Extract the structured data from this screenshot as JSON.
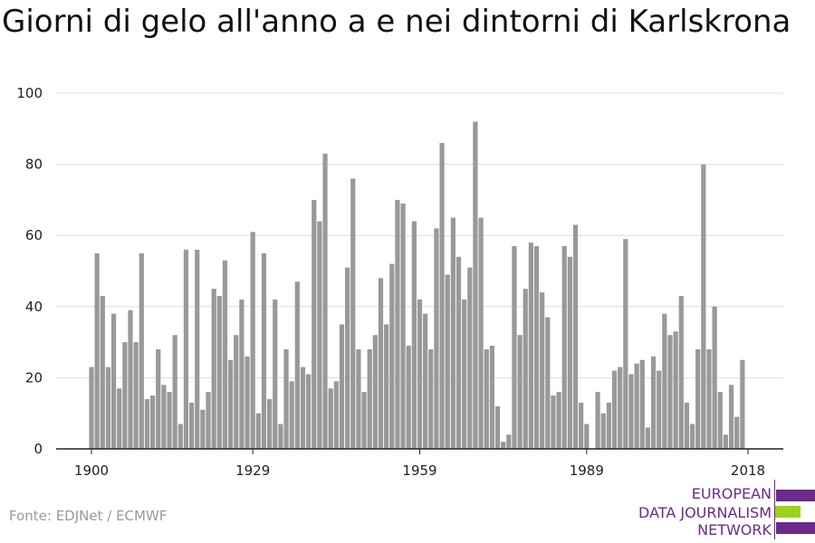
{
  "title": "Giorni di gelo all'anno a e nei dintorni di Karlskrona",
  "source": "Fonte: EDJNet / ECMWF",
  "logo": {
    "lines": [
      "EUROPEAN",
      "DATA JOURNALISM",
      "NETWORK"
    ],
    "colors": {
      "purple": "#6b2a8a",
      "green": "#9bd21c"
    }
  },
  "chart_data": {
    "type": "bar",
    "title": "Giorni di gelo all'anno a e nei dintorni di Karlskrona",
    "xlabel": "",
    "ylabel": "",
    "ylim": [
      0,
      100
    ],
    "yticks": [
      0,
      20,
      40,
      60,
      80,
      100
    ],
    "xticks": [
      1900,
      1929,
      1959,
      1989,
      2018
    ],
    "bar_color": "#999999",
    "grid": true,
    "x": [
      1900,
      1901,
      1902,
      1903,
      1904,
      1905,
      1906,
      1907,
      1908,
      1909,
      1910,
      1911,
      1912,
      1913,
      1914,
      1915,
      1916,
      1917,
      1918,
      1919,
      1920,
      1921,
      1922,
      1923,
      1924,
      1925,
      1926,
      1927,
      1928,
      1929,
      1930,
      1931,
      1932,
      1933,
      1934,
      1935,
      1936,
      1937,
      1938,
      1939,
      1940,
      1941,
      1942,
      1943,
      1944,
      1945,
      1946,
      1947,
      1948,
      1949,
      1950,
      1951,
      1952,
      1953,
      1954,
      1955,
      1956,
      1957,
      1958,
      1959,
      1960,
      1961,
      1962,
      1963,
      1964,
      1965,
      1966,
      1967,
      1968,
      1969,
      1970,
      1971,
      1972,
      1973,
      1974,
      1975,
      1976,
      1977,
      1978,
      1979,
      1980,
      1981,
      1982,
      1983,
      1984,
      1985,
      1986,
      1987,
      1988,
      1989,
      1990,
      1991,
      1992,
      1993,
      1994,
      1995,
      1996,
      1997,
      1998,
      1999,
      2000,
      2001,
      2002,
      2003,
      2004,
      2005,
      2006,
      2007,
      2008,
      2009,
      2010,
      2011,
      2012,
      2013,
      2014,
      2015,
      2016,
      2017,
      2018
    ],
    "values": [
      23,
      55,
      43,
      23,
      38,
      17,
      30,
      39,
      30,
      55,
      14,
      15,
      28,
      18,
      16,
      32,
      7,
      56,
      13,
      56,
      11,
      16,
      45,
      43,
      53,
      25,
      32,
      42,
      26,
      61,
      10,
      55,
      14,
      42,
      7,
      28,
      19,
      47,
      23,
      21,
      70,
      64,
      83,
      17,
      19,
      35,
      51,
      76,
      28,
      16,
      28,
      32,
      48,
      35,
      52,
      70,
      69,
      29,
      64,
      42,
      38,
      28,
      62,
      86,
      49,
      65,
      54,
      42,
      51,
      92,
      65,
      28,
      29,
      12,
      2,
      4,
      57,
      32,
      45,
      58,
      57,
      44,
      37,
      15,
      16,
      57,
      54,
      63,
      13,
      7,
      0,
      16,
      10,
      13,
      22,
      23,
      59,
      21,
      24,
      25,
      6,
      26,
      22,
      38,
      32,
      33,
      43,
      13,
      7,
      28,
      80,
      28,
      40,
      16,
      4,
      18,
      9,
      25,
      0
    ]
  }
}
